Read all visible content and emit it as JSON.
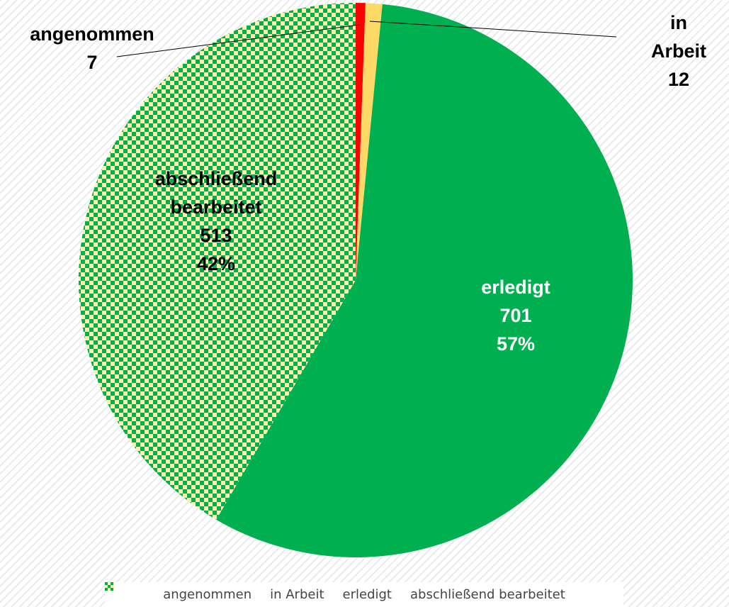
{
  "chart_data": {
    "type": "pie",
    "categories": [
      "angenommen",
      "in Arbeit",
      "erledigt",
      "abschließend bearbeitet"
    ],
    "values": [
      7,
      12,
      701,
      513
    ],
    "percent_labels": [
      null,
      null,
      "57%",
      "42%"
    ],
    "colors": [
      "#ff0000",
      "#ffd966",
      "#00b050",
      "#00b050"
    ],
    "patterns": [
      null,
      null,
      null,
      "checkerboard"
    ],
    "pattern_background": "#fff2a8",
    "start_angle": 0,
    "direction": "clockwise",
    "legend": "bottom"
  }
}
